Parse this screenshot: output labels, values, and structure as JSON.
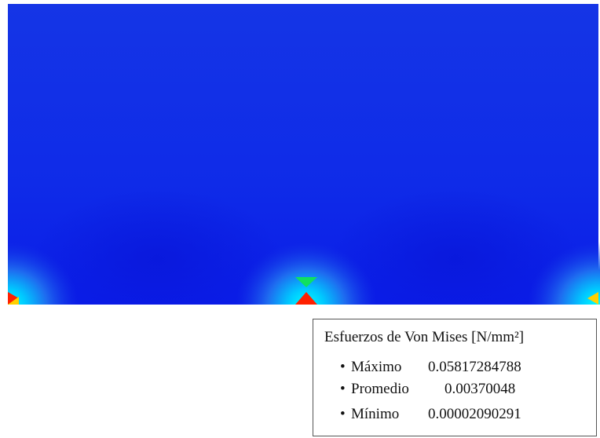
{
  "legend": {
    "title": "Esfuerzos de Von Mises [N/mm²]",
    "items": [
      {
        "label": "Máximo",
        "value": 0.05817284788
      },
      {
        "label": "Promedio",
        "value": 0.00370048
      },
      {
        "label": "Mínimo",
        "value": 2.090291e-05
      }
    ]
  }
}
